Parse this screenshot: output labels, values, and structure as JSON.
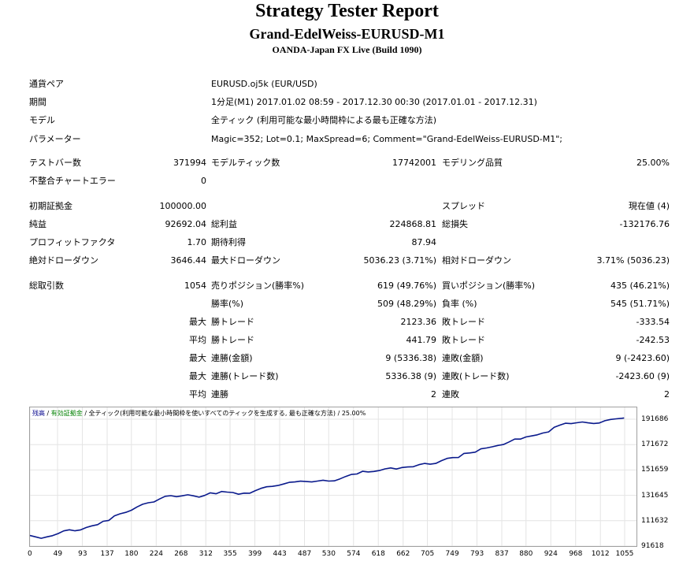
{
  "header": {
    "title": "Strategy Tester Report",
    "subtitle": "Grand-EdelWeiss-EURUSD-M1",
    "server": "OANDA-Japan FX Live (Build 1090)"
  },
  "info": [
    {
      "label": "通貨ペア",
      "value": "EURUSD.oj5k (EUR/USD)"
    },
    {
      "label": "期間",
      "value": "1分足(M1) 2017.01.02 08:59 - 2017.12.30 00:30 (2017.01.01 - 2017.12.31)"
    },
    {
      "label": "モデル",
      "value": "全ティック (利用可能な最小時間枠による最も正確な方法)"
    },
    {
      "label": "パラメーター",
      "value": "Magic=352; Lot=0.1; MaxSpread=6; Comment=\"Grand-EdelWeiss-EURUSD-M1\";"
    }
  ],
  "stats": {
    "test_bars": {
      "label": "テストバー数",
      "value": "371994"
    },
    "model_ticks": {
      "label": "モデルティック数",
      "value": "17742001"
    },
    "model_quality": {
      "label": "モデリング品質",
      "value": "25.00%"
    },
    "mismatch_errors": {
      "label": "不整合チャートエラー",
      "value": "0"
    },
    "initial_deposit": {
      "label": "初期証拠金",
      "value": "100000.00"
    },
    "spread": {
      "label": "スプレッド",
      "value": "現在値 (4)"
    },
    "net_profit": {
      "label": "純益",
      "value": "92692.04"
    },
    "gross_profit": {
      "label": "総利益",
      "value": "224868.81"
    },
    "gross_loss": {
      "label": "総損失",
      "value": "-132176.76"
    },
    "profit_factor": {
      "label": "プロフィットファクタ",
      "value": "1.70"
    },
    "expected_payoff": {
      "label": "期待利得",
      "value": "87.94"
    },
    "abs_drawdown": {
      "label": "絶対ドローダウン",
      "value": "3646.44"
    },
    "max_drawdown": {
      "label": "最大ドローダウン",
      "value": "5036.23 (3.71%)"
    },
    "rel_drawdown": {
      "label": "相対ドローダウン",
      "value": "3.71% (5036.23)"
    },
    "total_trades": {
      "label": "総取引数",
      "value": "1054"
    },
    "short_positions": {
      "label": "売りポジション(勝率%)",
      "value": "619 (49.76%)"
    },
    "long_positions": {
      "label": "買いポジション(勝率%)",
      "value": "435 (46.21%)"
    },
    "win_rate": {
      "label": "勝率(%)",
      "value": "509 (48.29%)"
    },
    "loss_rate": {
      "label": "負率 (%)",
      "value": "545 (51.71%)"
    },
    "max_prefix": "最大",
    "avg_prefix": "平均",
    "largest_win": {
      "label": "勝トレード",
      "value": "2123.36"
    },
    "largest_loss": {
      "label": "敗トレード",
      "value": "-333.54"
    },
    "avg_win": {
      "label": "勝トレード",
      "value": "441.79"
    },
    "avg_loss": {
      "label": "敗トレード",
      "value": "-242.53"
    },
    "max_consec_wins_amount": {
      "label": "連勝(金額)",
      "value": "9 (5336.38)"
    },
    "max_consec_losses_amount": {
      "label": "連敗(金額)",
      "value": "9 (-2423.60)"
    },
    "max_consec_wins_count": {
      "label": "連勝(トレード数)",
      "value": "5336.38 (9)"
    },
    "max_consec_losses_count": {
      "label": "連敗(トレード数)",
      "value": "-2423.60 (9)"
    },
    "avg_consec_wins": {
      "label": "連勝",
      "value": "2"
    },
    "avg_consec_losses": {
      "label": "連敗",
      "value": "2"
    }
  },
  "chart_legend": {
    "balance": "残高",
    "sep1": " / ",
    "margin": "有効証拠金",
    "sep2": " / ",
    "model": "全ティック(利用可能な最小時間枠を使いすべてのティックを生成する, 最も正確な方法)",
    "quality": " / 25.00%"
  },
  "colors": {
    "line": "#0a1a8c",
    "legend_balance": "#00008b",
    "legend_margin": "#008000",
    "grid": "#e4e4e4",
    "border": "#a0a0a0"
  },
  "chart_data": {
    "type": "line",
    "title": "",
    "xlabel": "",
    "ylabel": "",
    "x_ticks": [
      0,
      49,
      93,
      137,
      180,
      224,
      268,
      312,
      355,
      399,
      443,
      487,
      530,
      574,
      618,
      662,
      705,
      749,
      793,
      837,
      880,
      924,
      968,
      1012,
      1055
    ],
    "y_ticks": [
      91618,
      111632,
      131645,
      151659,
      171672,
      191686
    ],
    "xlim": [
      0,
      1076
    ],
    "ylim": [
      91618,
      201000
    ],
    "series": [
      {
        "x": [
          0,
          10,
          20,
          30,
          40,
          50,
          60,
          70,
          80,
          90,
          100,
          110,
          120,
          130,
          140,
          150,
          160,
          170,
          180,
          190,
          200,
          210,
          220,
          230,
          240,
          250,
          260,
          270,
          280,
          290,
          300,
          310,
          320,
          330,
          340,
          350,
          360,
          370,
          380,
          390,
          400,
          410,
          420,
          430,
          440,
          450,
          460,
          470,
          480,
          490,
          500,
          510,
          520,
          530,
          540,
          550,
          560,
          570,
          580,
          590,
          600,
          610,
          620,
          630,
          640,
          650,
          660,
          670,
          680,
          690,
          700,
          710,
          720,
          730,
          740,
          750,
          760,
          770,
          780,
          790,
          800,
          810,
          820,
          830,
          840,
          850,
          860,
          870,
          880,
          890,
          900,
          910,
          920,
          930,
          940,
          950,
          960,
          970,
          980,
          990,
          1000,
          1010,
          1020,
          1030,
          1040,
          1050,
          1054
        ],
        "y": [
          100000,
          98900,
          97800,
          98900,
          99800,
          101500,
          103600,
          104500,
          103700,
          104400,
          106300,
          107600,
          108500,
          111200,
          111900,
          115500,
          117100,
          118200,
          119900,
          122500,
          124600,
          125800,
          126400,
          128800,
          130900,
          131400,
          130600,
          131300,
          132100,
          131300,
          130200,
          131600,
          133600,
          132900,
          134700,
          134200,
          133900,
          132500,
          133400,
          133300,
          135400,
          137200,
          138400,
          138700,
          139400,
          140600,
          141900,
          142200,
          142800,
          142500,
          142200,
          142900,
          143600,
          142900,
          143100,
          144600,
          146500,
          148100,
          148500,
          150600,
          150100,
          150500,
          151200,
          152500,
          153300,
          152400,
          153600,
          154000,
          154200,
          155800,
          156800,
          156200,
          156800,
          159000,
          160800,
          161400,
          161500,
          164700,
          165100,
          165700,
          168300,
          169000,
          169900,
          171000,
          171700,
          173800,
          176000,
          176000,
          177700,
          178500,
          179400,
          180800,
          181700,
          185300,
          187000,
          188500,
          188200,
          188900,
          189500,
          188800,
          188300,
          188700,
          190500,
          191500,
          192000,
          192400,
          192700
        ]
      }
    ]
  }
}
